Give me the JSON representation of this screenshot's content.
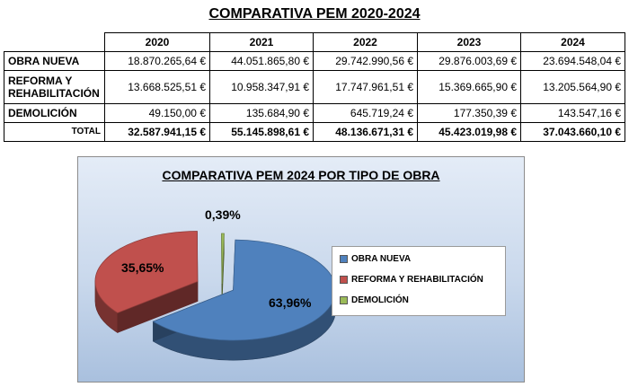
{
  "table": {
    "title": "COMPARATIVA PEM 2020-2024",
    "years": [
      "2020",
      "2021",
      "2022",
      "2023",
      "2024"
    ],
    "rows": [
      {
        "label": "OBRA NUEVA",
        "values": [
          "18.870.265,64 €",
          "44.051.865,80 €",
          "29.742.990,56 €",
          "29.876.003,69 €",
          "23.694.548,04 €"
        ]
      },
      {
        "label_line1": "REFORMA Y",
        "label_line2": "REHABILITACIÓN",
        "values": [
          "13.668.525,51 €",
          "10.958.347,91 €",
          "17.747.961,51 €",
          "15.369.665,90 €",
          "13.205.564,90 €"
        ]
      },
      {
        "label": "DEMOLICIÓN",
        "values": [
          "49.150,00 €",
          "135.684,90 €",
          "645.719,24 €",
          "177.350,39 €",
          "143.547,16 €"
        ]
      }
    ],
    "total": {
      "label": "TOTAL",
      "values": [
        "32.587.941,15 €",
        "55.145.898,61 €",
        "48.136.671,31 €",
        "45.423.019,98 €",
        "37.043.660,10 €"
      ]
    }
  },
  "chart_data": {
    "type": "pie",
    "title": "COMPARATIVA PEM 2024 POR TIPO DE OBRA",
    "legend_position": "right",
    "slices": [
      {
        "name": "OBRA NUEVA",
        "value": 63.96,
        "label": "63,96%",
        "color": "#4f81bd"
      },
      {
        "name": "REFORMA Y REHABILITACIÓN",
        "value": 35.65,
        "label": "35,65%",
        "color": "#c0504d"
      },
      {
        "name": "DEMOLICIÓN",
        "value": 0.39,
        "label": "0,39%",
        "color": "#9bbb59"
      }
    ]
  }
}
